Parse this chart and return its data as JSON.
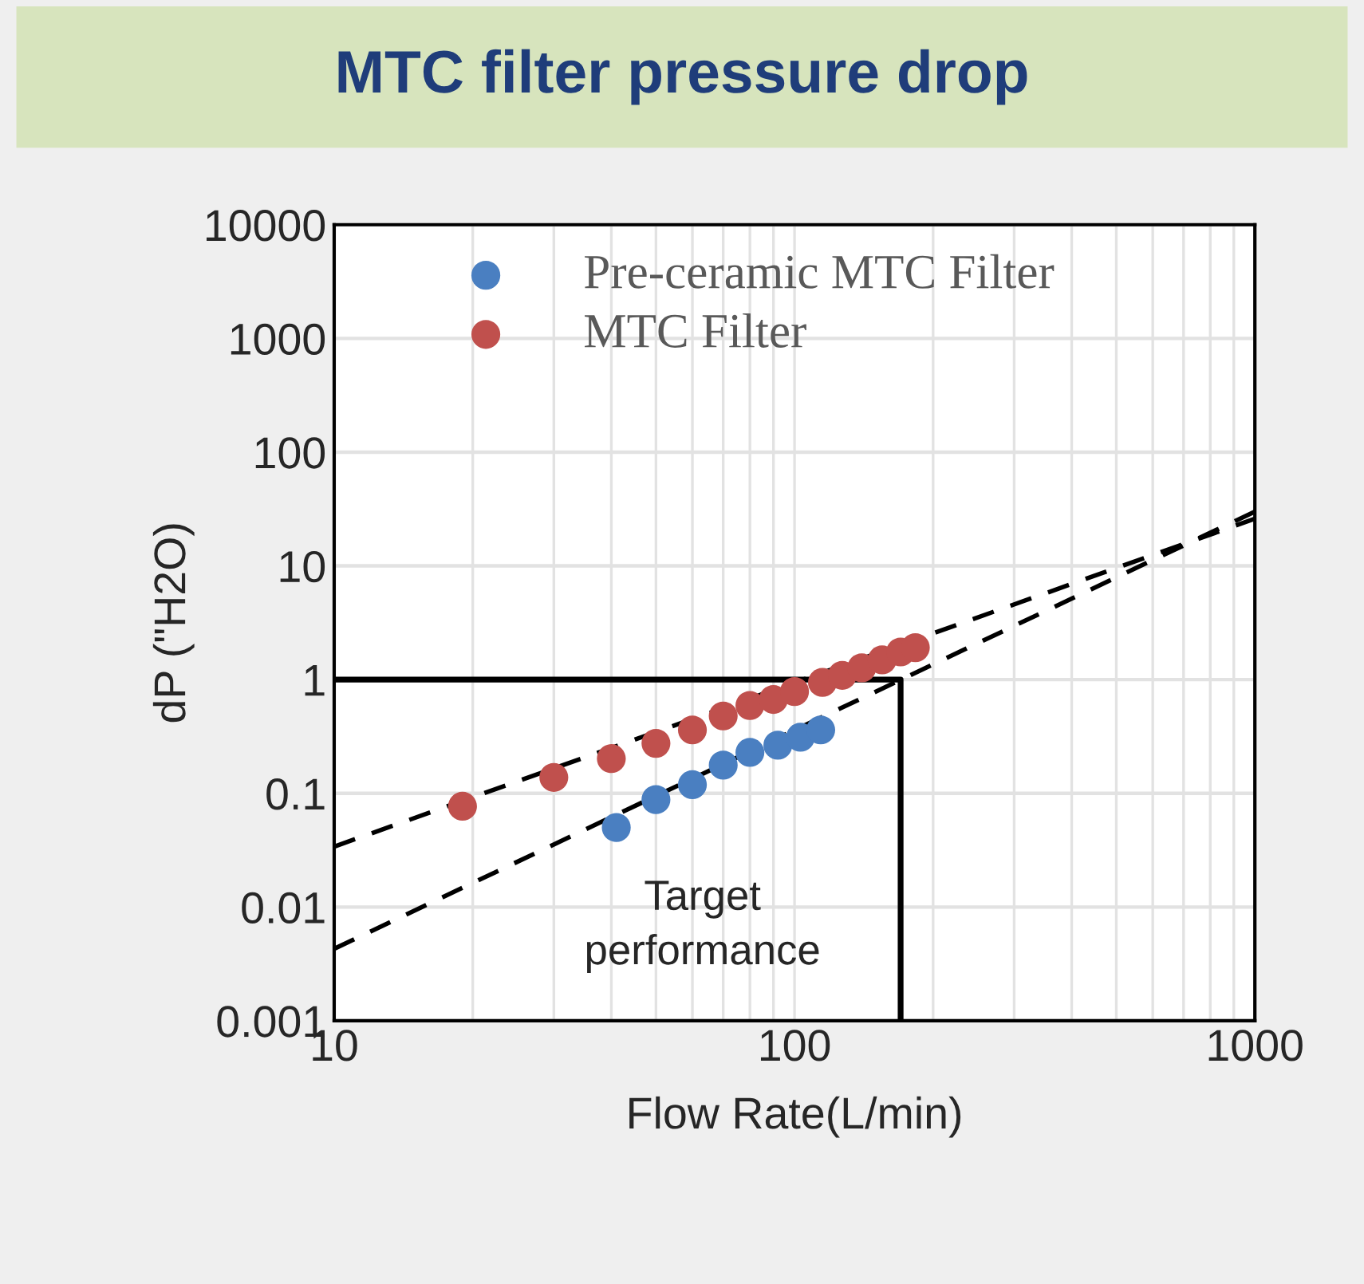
{
  "chart_data": {
    "type": "scatter",
    "title": "MTC filter pressure drop",
    "xlabel": "Flow Rate(L/min)",
    "ylabel": "dP (\"H2O)",
    "log": "xy",
    "xlim": [
      10,
      1000
    ],
    "xticks": [
      10,
      100,
      1000
    ],
    "ylim": [
      0.001,
      10000
    ],
    "yticks": [
      0.001,
      0.01,
      0.1,
      1,
      10,
      100,
      1000,
      10000
    ],
    "grid": true,
    "legend": "top left",
    "marker": "circle",
    "annotations": [
      "Target\nperformance"
    ],
    "series": [
      {
        "name": "Pre-ceramic MTC Filter",
        "color": "#4a7fc1",
        "x": [
          41,
          50,
          60,
          70,
          80,
          92,
          103,
          114
        ],
        "values": [
          0.05,
          0.088,
          0.119,
          0.177,
          0.229,
          0.265,
          0.311,
          0.361
        ]
      },
      {
        "name": "MTC Filter",
        "color": "#c0504d",
        "x": [
          19,
          30,
          40,
          50,
          60,
          70,
          80,
          90,
          100,
          115,
          127,
          140,
          155,
          170,
          183
        ],
        "values": [
          0.077,
          0.138,
          0.202,
          0.275,
          0.361,
          0.479,
          0.592,
          0.669,
          0.785,
          0.944,
          1.09,
          1.27,
          1.49,
          1.75,
          1.91
        ]
      },
      {
        "type": "line",
        "color": "#000000",
        "line_style": "dashed",
        "marker": "none",
        "x": [
          10,
          1000
        ],
        "values": [
          0.034,
          26
        ]
      },
      {
        "type": "line",
        "color": "#000000",
        "line_style": "dashed",
        "marker": "none",
        "x": [
          10,
          1000
        ],
        "values": [
          0.0043,
          30
        ]
      },
      {
        "type": "line",
        "color": "#000000",
        "line_style": "solid",
        "marker": "none",
        "x": [
          10,
          170,
          170
        ],
        "values": [
          1,
          1,
          0.001
        ]
      }
    ]
  }
}
